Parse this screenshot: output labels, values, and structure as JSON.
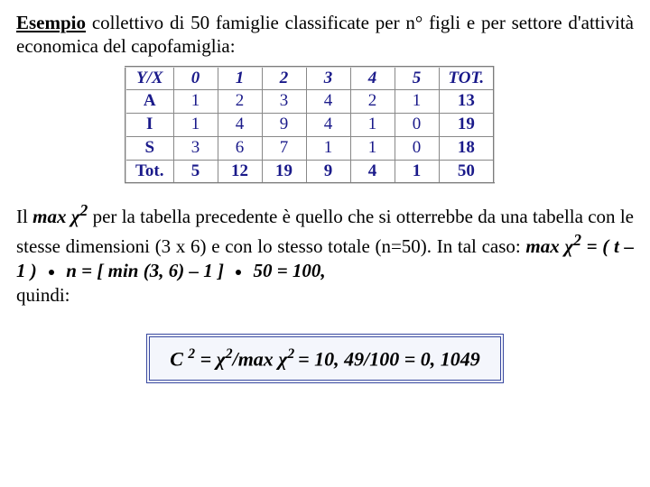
{
  "intro": {
    "word1": "Esempio",
    "rest": " collettivo di 50 famiglie classificate per n° figli e per settore d'attività economica del capofamiglia:"
  },
  "table": {
    "corner": "Y/X",
    "headers": [
      "0",
      "1",
      "2",
      "3",
      "4",
      "5",
      "TOT."
    ],
    "rows": [
      {
        "label": "A",
        "cells": [
          "1",
          "2",
          "3",
          "4",
          "2",
          "1"
        ],
        "tot": "13"
      },
      {
        "label": "I",
        "cells": [
          "1",
          "4",
          "9",
          "4",
          "1",
          "0"
        ],
        "tot": "19"
      },
      {
        "label": "S",
        "cells": [
          "3",
          "6",
          "7",
          "1",
          "1",
          "0"
        ],
        "tot": "18"
      }
    ],
    "totrow": {
      "label": "Tot.",
      "cells": [
        "5",
        "12",
        "19",
        "9",
        "4",
        "1"
      ],
      "tot": "50"
    }
  },
  "para2": {
    "p1a": "Il ",
    "p1b_bi": "max χ",
    "p1b_sup": "2",
    "p1c": " per la tabella precedente è quello che si otterrebbe da una tabella con le stesse dimensioni (3 x 6) e con lo stesso totale (n=50). In tal caso: ",
    "p2_bi": "max χ",
    "p2_sup": "2",
    "p2_eq": " = ( t – 1 )",
    "p3_bi": "n  = [ min (3, 6) – 1 ]",
    "p4_bi": "50 = 100,",
    "p5": "quindi:"
  },
  "formula": {
    "lhs_C": "C ",
    "lhs_sup": "2",
    "mid": "  =  χ",
    "mid_sup": "2",
    "mid2": "/max χ",
    "mid2_sup": "2 ",
    "rhs": "= 10, 49/100 = 0, 1049"
  }
}
